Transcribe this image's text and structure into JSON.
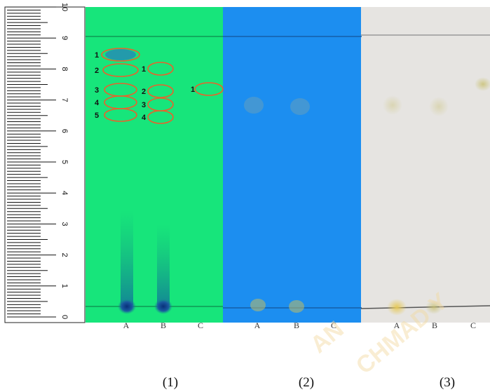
{
  "ruler": {
    "labels": [
      "10",
      "9",
      "8",
      "7",
      "6",
      "5",
      "4",
      "3",
      "2",
      "1",
      "0"
    ]
  },
  "panels": [
    {
      "label": "(1)",
      "lanes": [
        "A",
        "B",
        "C"
      ],
      "spot_labels": [
        [
          "1",
          "2",
          "3",
          "4",
          "5"
        ],
        [
          "1",
          "2",
          "3",
          "4"
        ],
        [
          "1"
        ]
      ]
    },
    {
      "label": "(2)",
      "lanes": [
        "A",
        "B",
        "C"
      ]
    },
    {
      "label": "(3)",
      "lanes": [
        "A",
        "B",
        "C"
      ]
    }
  ],
  "watermark": [
    "AN",
    "CHMAD Y"
  ]
}
